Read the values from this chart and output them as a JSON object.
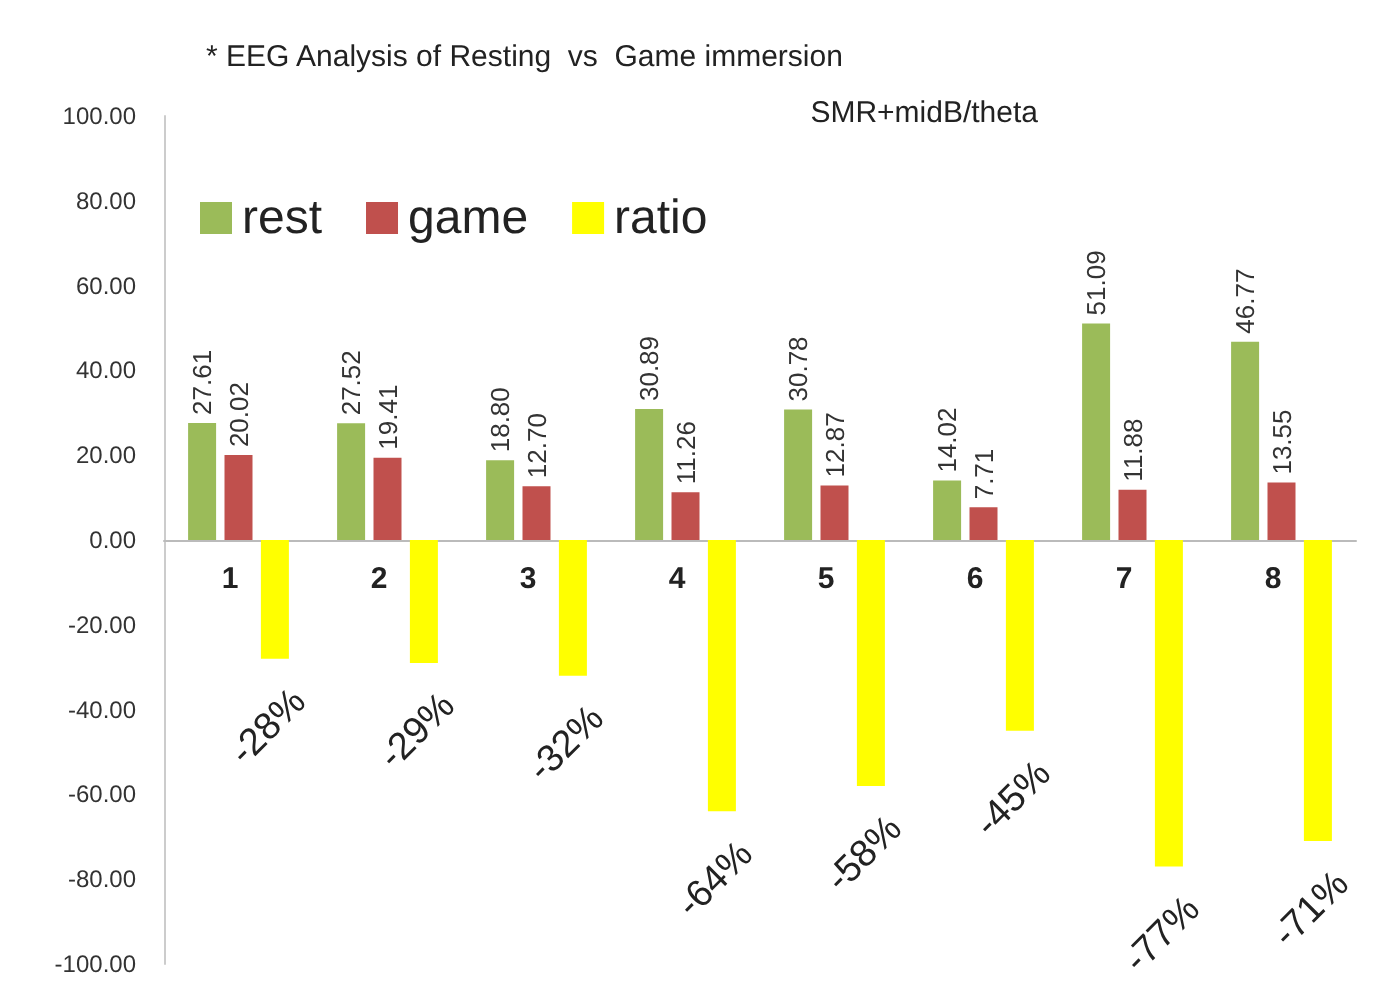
{
  "chart_data": {
    "type": "bar",
    "title": "* EEG Analysis of Resting  vs  Game immersion",
    "subtitle": "SMR+midB/theta",
    "categories": [
      "1",
      "2",
      "3",
      "4",
      "5",
      "6",
      "7",
      "8"
    ],
    "series": [
      {
        "name": "rest",
        "color": "#9bbb59",
        "values": [
          27.61,
          27.52,
          18.8,
          30.89,
          30.78,
          14.02,
          51.09,
          46.77
        ],
        "value_labels": [
          "27.61",
          "27.52",
          "18.80",
          "30.89",
          "30.78",
          "14.02",
          "51.09",
          "46.77"
        ]
      },
      {
        "name": "game",
        "color": "#c0504d",
        "values": [
          20.02,
          19.41,
          12.7,
          11.26,
          12.87,
          7.71,
          11.88,
          13.55
        ],
        "value_labels": [
          "20.02",
          "19.41",
          "12.70",
          "11.26",
          "12.87",
          "7.71",
          "11.88",
          "13.55"
        ]
      },
      {
        "name": "ratio",
        "color": "#ffff00",
        "values": [
          -28,
          -29,
          -32,
          -64,
          -58,
          -45,
          -77,
          -71
        ],
        "value_labels": [
          "-28%",
          "-29%",
          "-32%",
          "-64%",
          "-58%",
          "-45%",
          "-77%",
          "-71%"
        ]
      }
    ],
    "ylim": [
      -100,
      100
    ],
    "yticks": [
      {
        "value": -100,
        "label": "-100.00"
      },
      {
        "value": -80,
        "label": "-80.00"
      },
      {
        "value": -60,
        "label": "-60.00"
      },
      {
        "value": -40,
        "label": "-40.00"
      },
      {
        "value": -20,
        "label": "-20.00"
      },
      {
        "value": 0,
        "label": "0.00"
      },
      {
        "value": 20,
        "label": "20.00"
      },
      {
        "value": 40,
        "label": "40.00"
      },
      {
        "value": 60,
        "label": "60.00"
      },
      {
        "value": 80,
        "label": "80.00"
      },
      {
        "value": 100,
        "label": "100.00"
      }
    ],
    "grid": false,
    "legend": "top left"
  }
}
